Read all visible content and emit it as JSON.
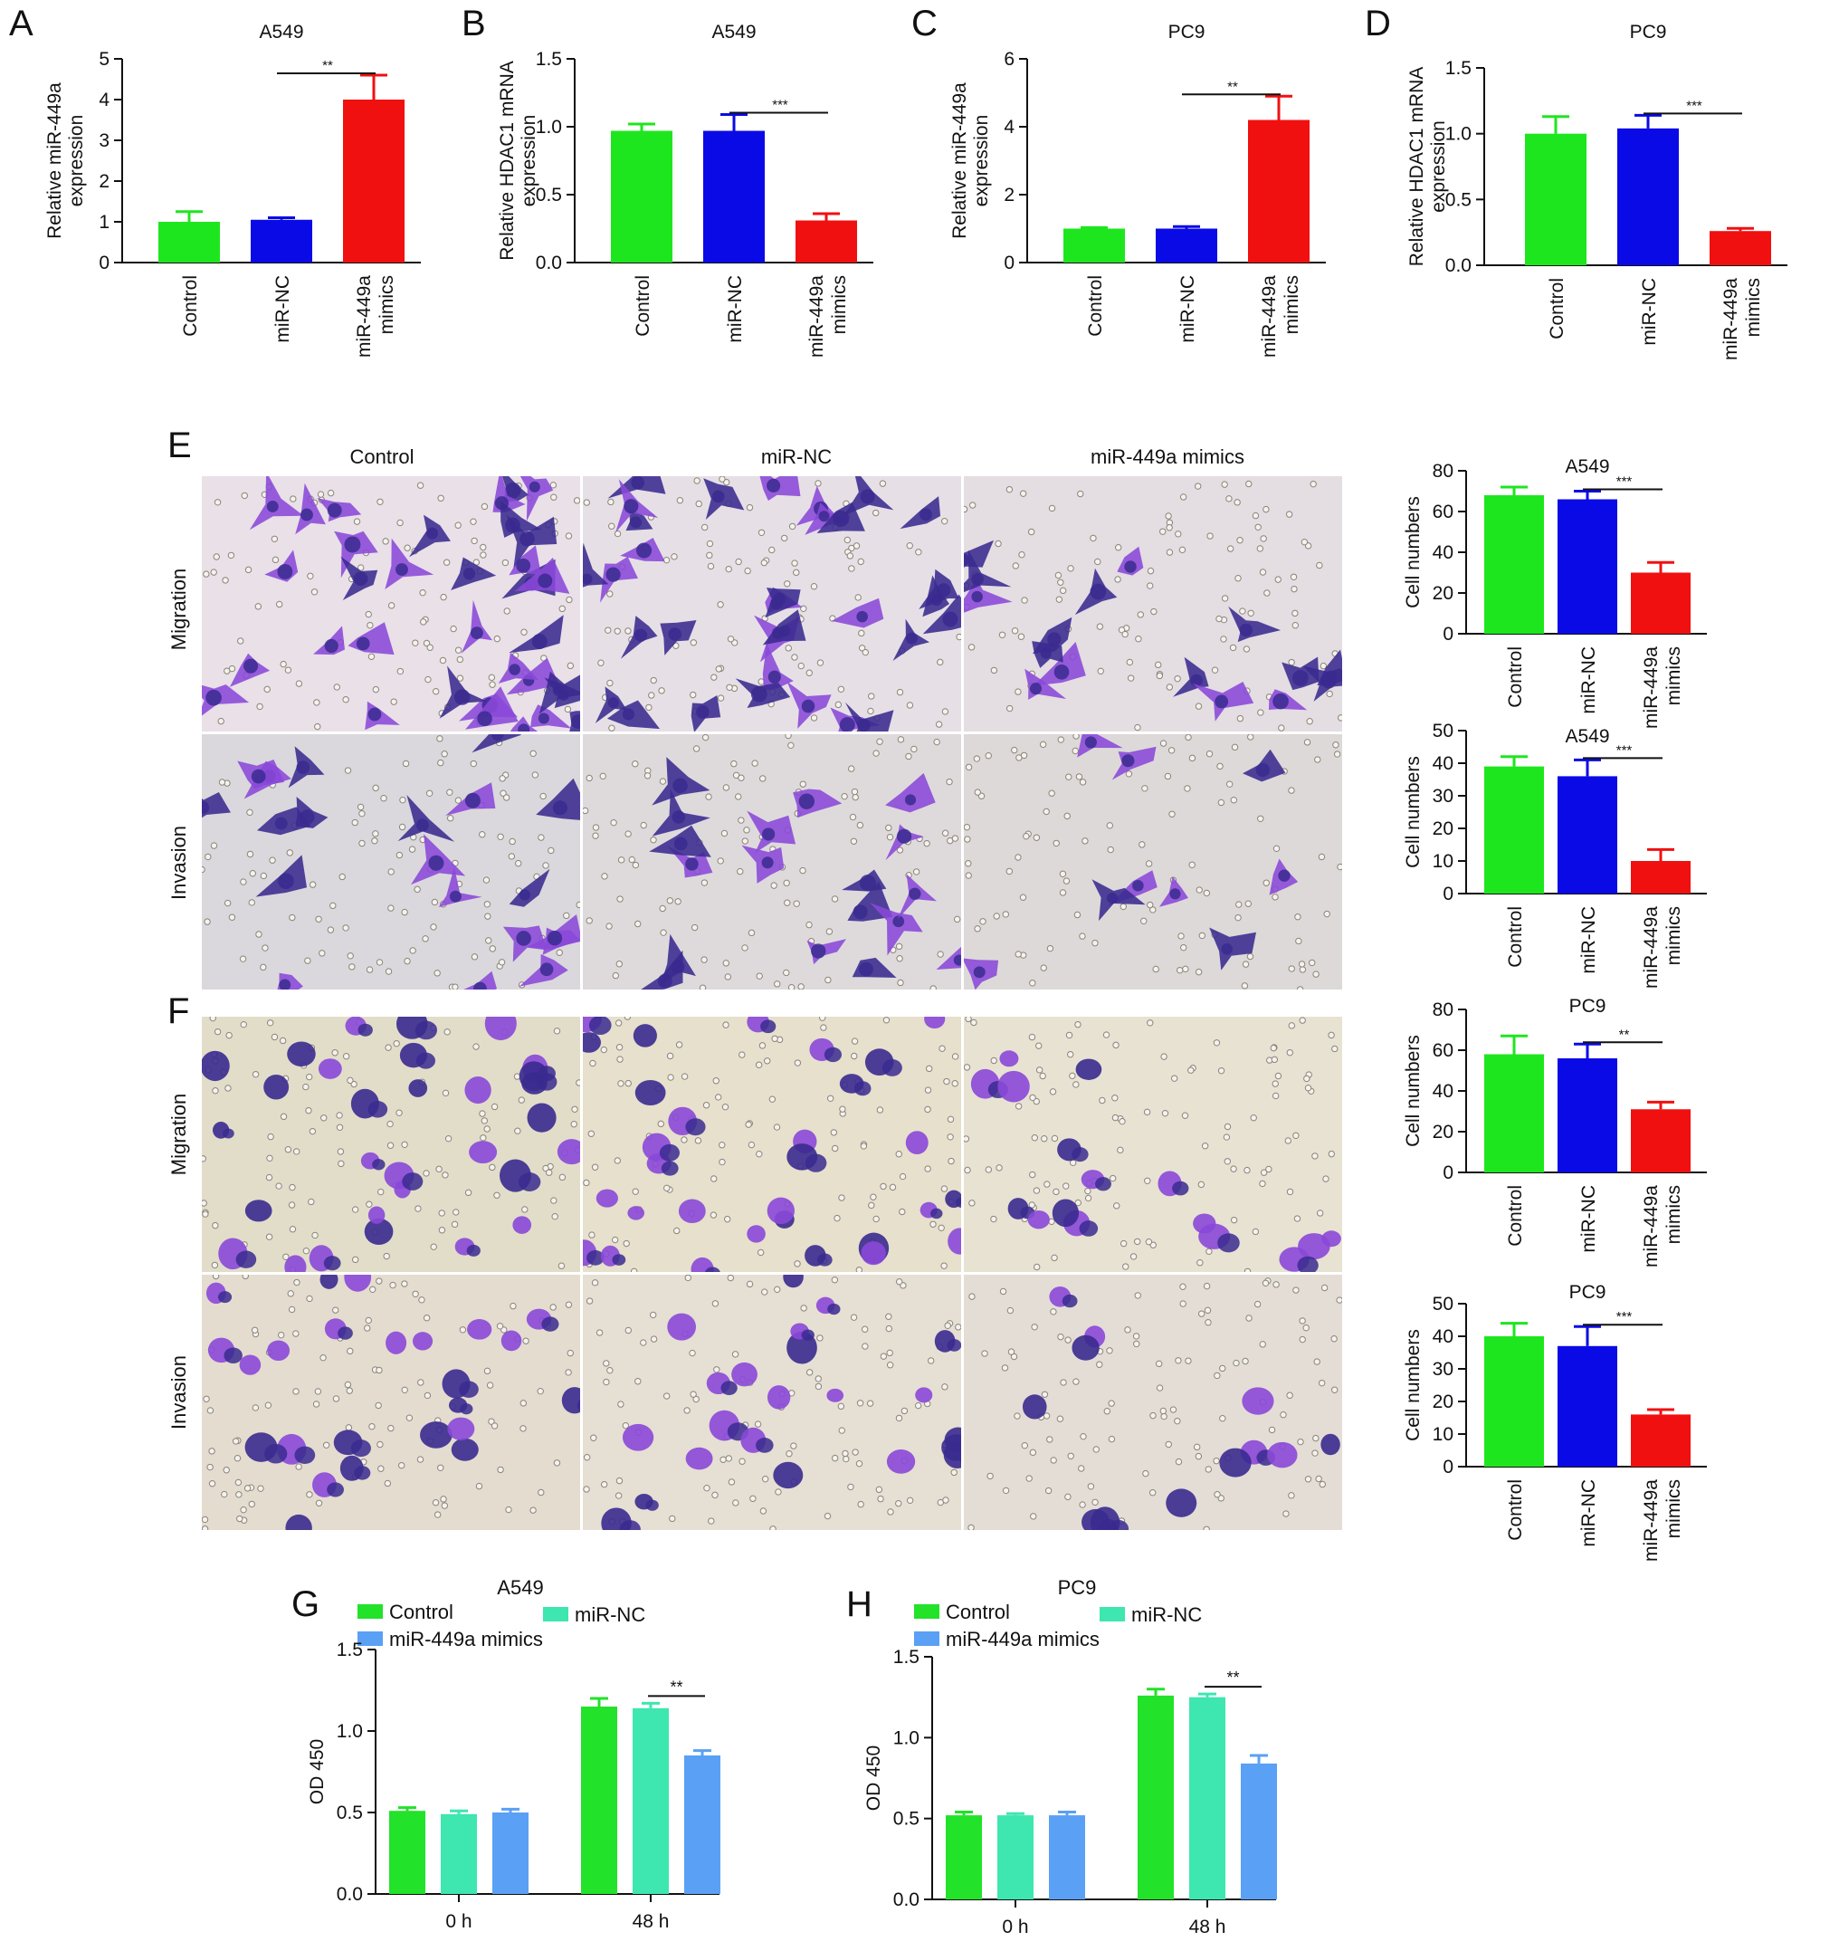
{
  "panels": {
    "A": "A",
    "B": "B",
    "C": "C",
    "D": "D",
    "E": "E",
    "F": "F",
    "G": "G",
    "H": "H"
  },
  "micro": {
    "col_headers": [
      "Control",
      "miR-NC",
      "miR-449a mimics"
    ],
    "row_labels": [
      "Migration",
      "Invasion"
    ]
  },
  "colors": {
    "control": "#1ee61e",
    "mirnc": "#0a0ae6",
    "mimics": "#f01010",
    "g_control": "#22e22a",
    "g_mirnc": "#3ee6b0",
    "g_mimics": "#5aa0f5",
    "stain_dark": "#3a2a8f",
    "stain": "#8a48d8"
  },
  "chart_data": [
    {
      "id": "A",
      "type": "bar",
      "title": "A549",
      "ylabel": [
        "Relative miR-449a",
        "expression"
      ],
      "categories": [
        "Control",
        "miR-NC",
        "miR-449a mimics"
      ],
      "values": [
        1.0,
        1.05,
        4.0
      ],
      "errors": [
        0.25,
        0.05,
        0.6
      ],
      "ylim": [
        0,
        5
      ],
      "yticks": [
        "0",
        "1",
        "2",
        "3",
        "4",
        "5"
      ],
      "significance": {
        "label": "**",
        "from": 1,
        "to": 2
      }
    },
    {
      "id": "B",
      "type": "bar",
      "title": "A549",
      "ylabel": [
        "Relative HDAC1 mRNA",
        "expression"
      ],
      "categories": [
        "Control",
        "miR-NC",
        "miR-449a mimics"
      ],
      "values": [
        0.97,
        0.97,
        0.31
      ],
      "errors": [
        0.05,
        0.12,
        0.05
      ],
      "ylim": [
        0,
        1.5
      ],
      "yticks": [
        "0.0",
        "0.5",
        "1.0",
        "1.5"
      ],
      "significance": {
        "label": "***",
        "from": 1,
        "to": 2
      }
    },
    {
      "id": "C",
      "type": "bar",
      "title": "PC9",
      "ylabel": [
        "Relative miR-449a",
        "expression"
      ],
      "categories": [
        "Control",
        "miR-NC",
        "miR-449a mimics"
      ],
      "values": [
        1.0,
        1.0,
        4.2
      ],
      "errors": [
        0.03,
        0.06,
        0.7
      ],
      "ylim": [
        0,
        6
      ],
      "yticks": [
        "0",
        "2",
        "4",
        "6"
      ],
      "significance": {
        "label": "**",
        "from": 1,
        "to": 2
      }
    },
    {
      "id": "D",
      "type": "bar",
      "title": "PC9",
      "ylabel": [
        "Relative HDAC1 mRNA",
        "expression"
      ],
      "categories": [
        "Control",
        "miR-NC",
        "miR-449a mimics"
      ],
      "values": [
        1.0,
        1.04,
        0.26
      ],
      "errors": [
        0.13,
        0.1,
        0.02
      ],
      "ylim": [
        0,
        1.5
      ],
      "yticks": [
        "0.0",
        "0.5",
        "1.0",
        "1.5"
      ],
      "significance": {
        "label": "***",
        "from": 1,
        "to": 2
      }
    },
    {
      "id": "E1",
      "type": "bar",
      "title": "A549",
      "ylabel": [
        "Cell numbers"
      ],
      "categories": [
        "Control",
        "miR-NC",
        "miR-449a mimics"
      ],
      "values": [
        68,
        66,
        30
      ],
      "errors": [
        4,
        4,
        5
      ],
      "ylim": [
        0,
        80
      ],
      "yticks": [
        "0",
        "20",
        "40",
        "60",
        "80"
      ],
      "significance": {
        "label": "***",
        "from": 1,
        "to": 2
      }
    },
    {
      "id": "E2",
      "type": "bar",
      "title": "A549",
      "ylabel": [
        "Cell numbers"
      ],
      "categories": [
        "Control",
        "miR-NC",
        "miR-449a mimics"
      ],
      "values": [
        39,
        36,
        10
      ],
      "errors": [
        3,
        5,
        3.5
      ],
      "ylim": [
        0,
        50
      ],
      "yticks": [
        "0",
        "10",
        "20",
        "30",
        "40",
        "50"
      ],
      "significance": {
        "label": "***",
        "from": 1,
        "to": 2
      }
    },
    {
      "id": "F1",
      "type": "bar",
      "title": "PC9",
      "ylabel": [
        "Cell numbers"
      ],
      "categories": [
        "Control",
        "miR-NC",
        "miR-449a mimics"
      ],
      "values": [
        58,
        56,
        31
      ],
      "errors": [
        9,
        7,
        3.5
      ],
      "ylim": [
        0,
        80
      ],
      "yticks": [
        "0",
        "20",
        "40",
        "60",
        "80"
      ],
      "significance": {
        "label": "**",
        "from": 1,
        "to": 2
      }
    },
    {
      "id": "F2",
      "type": "bar",
      "title": "PC9",
      "ylabel": [
        "Cell numbers"
      ],
      "categories": [
        "Control",
        "miR-NC",
        "miR-449a mimics"
      ],
      "values": [
        40,
        37,
        16
      ],
      "errors": [
        4,
        6,
        1.5
      ],
      "ylim": [
        0,
        50
      ],
      "yticks": [
        "0",
        "10",
        "20",
        "30",
        "40",
        "50"
      ],
      "significance": {
        "label": "***",
        "from": 1,
        "to": 2
      }
    },
    {
      "id": "G",
      "type": "bar",
      "title": "A549",
      "ylabel": [
        "OD 450"
      ],
      "categories": [
        "0 h",
        "48 h"
      ],
      "series": [
        {
          "name": "Control",
          "values": [
            0.51,
            1.15
          ],
          "errors": [
            0.02,
            0.05
          ]
        },
        {
          "name": "miR-NC",
          "values": [
            0.49,
            1.14
          ],
          "errors": [
            0.02,
            0.03
          ]
        },
        {
          "name": "miR-449a mimics",
          "values": [
            0.5,
            0.85
          ],
          "errors": [
            0.02,
            0.03
          ]
        }
      ],
      "ylim": [
        0,
        1.5
      ],
      "yticks": [
        "0.0",
        "0.5",
        "1.0",
        "1.5"
      ],
      "legend": "top",
      "significance": {
        "label": "**",
        "group": 1,
        "from": 1,
        "to": 2
      }
    },
    {
      "id": "H",
      "type": "bar",
      "title": "PC9",
      "ylabel": [
        "OD 450"
      ],
      "categories": [
        "0 h",
        "48 h"
      ],
      "series": [
        {
          "name": "Control",
          "values": [
            0.52,
            1.26
          ],
          "errors": [
            0.02,
            0.04
          ]
        },
        {
          "name": "miR-NC",
          "values": [
            0.52,
            1.25
          ],
          "errors": [
            0.01,
            0.02
          ]
        },
        {
          "name": "miR-449a mimics",
          "values": [
            0.52,
            0.84
          ],
          "errors": [
            0.02,
            0.05
          ]
        }
      ],
      "ylim": [
        0,
        1.5
      ],
      "yticks": [
        "0.0",
        "0.5",
        "1.0",
        "1.5"
      ],
      "legend": "top",
      "significance": {
        "label": "**",
        "group": 1,
        "from": 1,
        "to": 2
      }
    }
  ]
}
